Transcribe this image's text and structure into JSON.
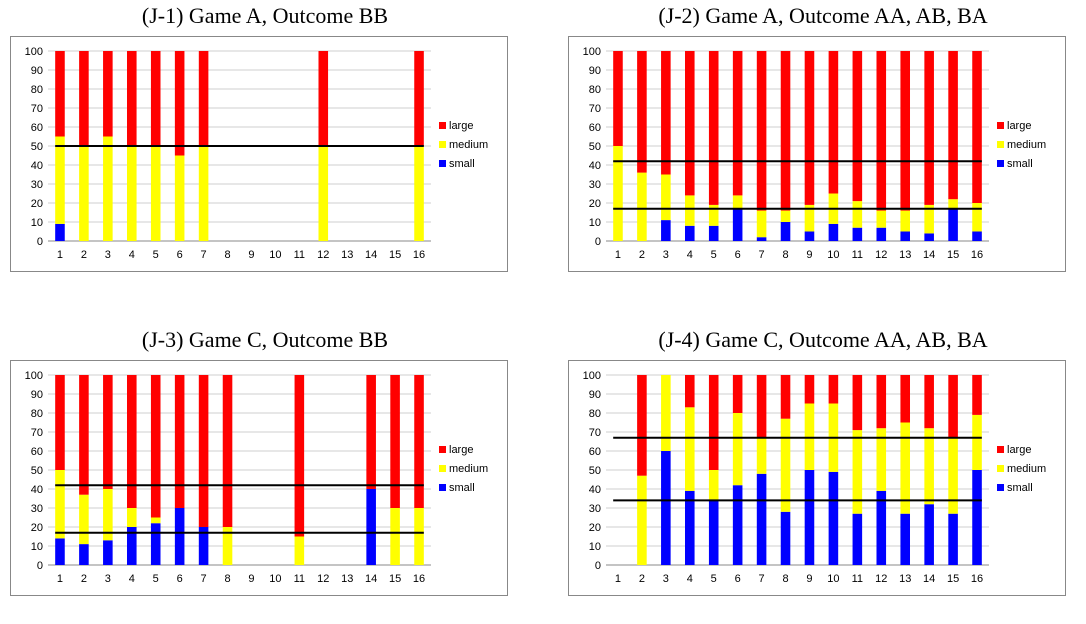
{
  "colors": {
    "large": "#ff0000",
    "medium": "#ffff00",
    "small": "#0000ff",
    "ref_line": "#000000",
    "grid": "#cfcfcf"
  },
  "chart_data": [
    {
      "type": "bar",
      "stacked": true,
      "title": "(J-1) Game A, Outcome BB",
      "categories": [
        "1",
        "2",
        "3",
        "4",
        "5",
        "6",
        "7",
        "8",
        "9",
        "10",
        "11",
        "12",
        "13",
        "14",
        "15",
        "16"
      ],
      "ylim": [
        0,
        100
      ],
      "yticks": [
        0,
        10,
        20,
        30,
        40,
        50,
        60,
        70,
        80,
        90,
        100
      ],
      "series": [
        {
          "name": "small",
          "values": [
            9,
            0,
            0,
            0,
            0,
            0,
            0,
            0,
            0,
            0,
            0,
            0,
            0,
            0,
            0,
            0
          ]
        },
        {
          "name": "medium",
          "values": [
            46,
            50,
            55,
            50,
            50,
            45,
            50,
            0,
            0,
            0,
            0,
            50,
            0,
            0,
            0,
            50
          ]
        },
        {
          "name": "large",
          "values": [
            45,
            50,
            45,
            50,
            50,
            55,
            50,
            0,
            0,
            0,
            0,
            50,
            0,
            0,
            0,
            50
          ]
        }
      ],
      "hlines": [
        50
      ],
      "legend": "right",
      "grid": true
    },
    {
      "type": "bar",
      "stacked": true,
      "title": "(J-2) Game A, Outcome AA, AB, BA",
      "categories": [
        "1",
        "2",
        "3",
        "4",
        "5",
        "6",
        "7",
        "8",
        "9",
        "10",
        "11",
        "12",
        "13",
        "14",
        "15",
        "16"
      ],
      "ylim": [
        0,
        100
      ],
      "yticks": [
        0,
        10,
        20,
        30,
        40,
        50,
        60,
        70,
        80,
        90,
        100
      ],
      "series": [
        {
          "name": "small",
          "values": [
            0,
            0,
            11,
            8,
            8,
            17,
            2,
            10,
            5,
            9,
            7,
            7,
            5,
            4,
            17,
            5
          ]
        },
        {
          "name": "medium",
          "values": [
            50,
            36,
            24,
            16,
            11,
            7,
            14,
            6,
            14,
            16,
            14,
            9,
            11,
            15,
            5,
            15
          ]
        },
        {
          "name": "large",
          "values": [
            50,
            64,
            65,
            76,
            81,
            76,
            84,
            84,
            81,
            75,
            79,
            84,
            84,
            81,
            78,
            80
          ]
        }
      ],
      "hlines": [
        42,
        17
      ],
      "legend": "right",
      "grid": true
    },
    {
      "type": "bar",
      "stacked": true,
      "title": "(J-3) Game C, Outcome BB",
      "categories": [
        "1",
        "2",
        "3",
        "4",
        "5",
        "6",
        "7",
        "8",
        "9",
        "10",
        "11",
        "12",
        "13",
        "14",
        "15",
        "16"
      ],
      "ylim": [
        0,
        100
      ],
      "yticks": [
        0,
        10,
        20,
        30,
        40,
        50,
        60,
        70,
        80,
        90,
        100
      ],
      "series": [
        {
          "name": "small",
          "values": [
            14,
            11,
            13,
            20,
            22,
            30,
            20,
            0,
            0,
            0,
            0,
            0,
            0,
            40,
            0,
            0
          ]
        },
        {
          "name": "medium",
          "values": [
            36,
            26,
            27,
            10,
            3,
            0,
            0,
            20,
            0,
            0,
            15,
            0,
            0,
            0,
            30,
            30
          ]
        },
        {
          "name": "large",
          "values": [
            50,
            63,
            60,
            70,
            75,
            70,
            80,
            80,
            0,
            0,
            85,
            0,
            0,
            60,
            70,
            70
          ]
        }
      ],
      "hlines": [
        42,
        17
      ],
      "legend": "right",
      "grid": true
    },
    {
      "type": "bar",
      "stacked": true,
      "title": "(J-4) Game C, Outcome AA, AB, BA",
      "categories": [
        "1",
        "2",
        "3",
        "4",
        "5",
        "6",
        "7",
        "8",
        "9",
        "10",
        "11",
        "12",
        "13",
        "14",
        "15",
        "16"
      ],
      "ylim": [
        0,
        100
      ],
      "yticks": [
        0,
        10,
        20,
        30,
        40,
        50,
        60,
        70,
        80,
        90,
        100
      ],
      "series": [
        {
          "name": "small",
          "values": [
            0,
            0,
            60,
            39,
            34,
            42,
            48,
            28,
            50,
            49,
            27,
            39,
            27,
            32,
            27,
            50
          ]
        },
        {
          "name": "medium",
          "values": [
            0,
            47,
            40,
            44,
            16,
            38,
            19,
            49,
            35,
            36,
            44,
            33,
            48,
            40,
            40,
            29
          ]
        },
        {
          "name": "large",
          "values": [
            0,
            53,
            0,
            17,
            50,
            20,
            33,
            23,
            15,
            15,
            29,
            28,
            25,
            28,
            33,
            21
          ]
        }
      ],
      "hlines": [
        67,
        34
      ],
      "legend": "right",
      "grid": true
    }
  ]
}
